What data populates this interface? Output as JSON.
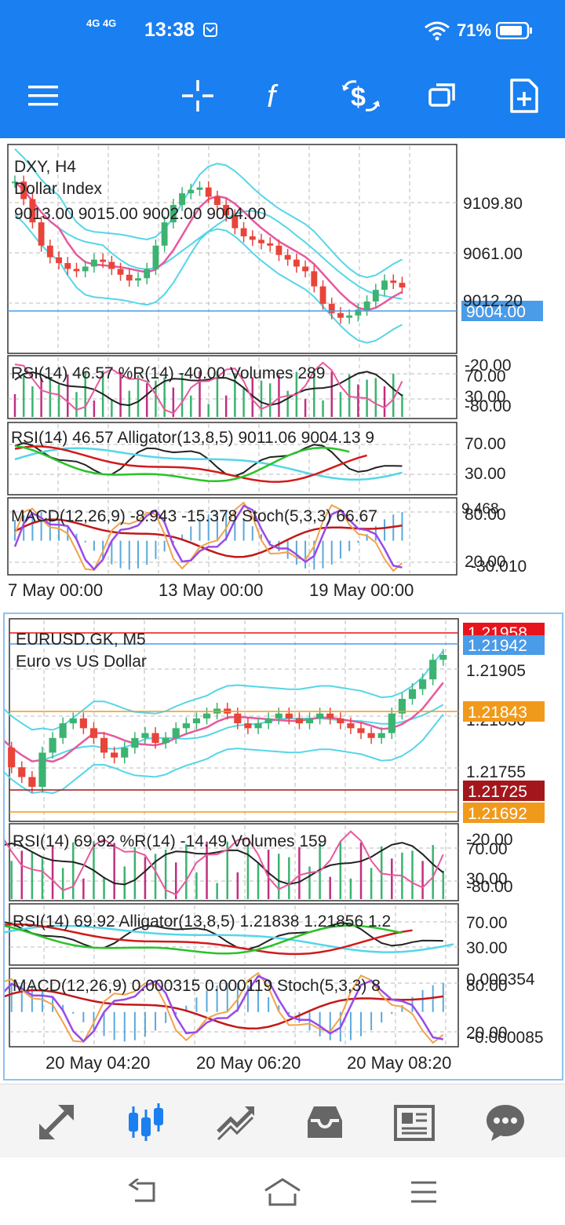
{
  "status_bar": {
    "network": "4G 4G",
    "time": "13:38",
    "battery": "71%"
  },
  "toolbar": {
    "icons": [
      "menu-icon",
      "crosshair-icon",
      "function-icon",
      "currency-exchange-icon",
      "windows-icon",
      "add-page-icon"
    ]
  },
  "chart_data": [
    {
      "type": "candlestick",
      "symbol": "DXY, H4",
      "description": "Dollar Index",
      "ohlc_readout": "9013.00 9015.00 9002.00 9004.00",
      "current_price": "9004.00",
      "price_ticks": [
        "9109.80",
        "9061.00",
        "9012.20"
      ],
      "x_ticks": [
        "7 May 00:00",
        "13 May 00:00",
        "19 May 00:00"
      ],
      "close_series": [
        9095,
        9080,
        9060,
        9040,
        9030,
        9025,
        9020,
        9018,
        9022,
        9028,
        9026,
        9020,
        9015,
        9010,
        9012,
        9020,
        9040,
        9060,
        9075,
        9085,
        9088,
        9090,
        9082,
        9075,
        9066,
        9055,
        9048,
        9045,
        9042,
        9040,
        9032,
        9028,
        9022,
        9018,
        9005,
        8990,
        8982,
        8978,
        8980,
        8985,
        8992,
        9002,
        9010,
        9008,
        9004
      ],
      "indicators": {
        "rsi_r_volumes": {
          "label": "RSI(14) 46.57 %R(14) -40.00 Volumes 289",
          "ticks": [
            "-20.00",
            "70.00",
            "30.00",
            "-80.00"
          ]
        },
        "rsi_alligator": {
          "label": "RSI(14) 46.57 Alligator(13,8,5) 9011.06 9004.13 9",
          "ticks": [
            "70.00",
            "30.00"
          ]
        },
        "macd_stoch": {
          "label": "MACD(12,26,9) -8.943 -15.378 Stoch(5,3,3) 66.67",
          "ticks": [
            "9.468",
            "80.00",
            "20.00",
            "-30.010"
          ]
        }
      }
    },
    {
      "type": "candlestick",
      "symbol": "EURUSD.GK, M5",
      "description": "Euro vs US Dollar",
      "price_ticks": [
        "1.21905",
        "1.21830",
        "1.21755"
      ],
      "price_labels": [
        {
          "text": "1.21958",
          "color": "#e8141c"
        },
        {
          "text": "1.21942",
          "color": "#4a9be8"
        },
        {
          "text": "1.21843",
          "color": "#f09a1c"
        },
        {
          "text": "1.21725",
          "color": "#a3171c"
        },
        {
          "text": "1.21692",
          "color": "#f09a1c"
        }
      ],
      "x_ticks": [
        "20 May 04:20",
        "20 May 06:20",
        "20 May 08:20"
      ],
      "close_series": [
        1.218,
        1.2176,
        1.2172,
        1.217,
        1.2168,
        1.2175,
        1.2178,
        1.2181,
        1.2182,
        1.218,
        1.2178,
        1.2175,
        1.2174,
        1.2176,
        1.2178,
        1.2179,
        1.2177,
        1.2178,
        1.218,
        1.2181,
        1.2182,
        1.2183,
        1.2184,
        1.2183,
        1.2181,
        1.218,
        1.2181,
        1.2182,
        1.2183,
        1.2182,
        1.2181,
        1.2182,
        1.2183,
        1.2182,
        1.2181,
        1.218,
        1.2179,
        1.2178,
        1.2179,
        1.2183,
        1.2186,
        1.2188,
        1.219,
        1.2194,
        1.2195
      ],
      "indicators": {
        "rsi_r_volumes": {
          "label": "RSI(14) 69.92 %R(14) -14.49 Volumes 159",
          "ticks": [
            "-20.00",
            "70.00",
            "30.00",
            "-80.00"
          ]
        },
        "rsi_alligator": {
          "label": "RSI(14) 69.92 Alligator(13,8,5) 1.21838 1.21856 1.2",
          "ticks": [
            "70.00",
            "30.00"
          ]
        },
        "macd_stoch": {
          "label": "MACD(12,26,9) 0.000315 0.000119 Stoch(5,3,3) 8",
          "ticks": [
            "0.000354",
            "80.00",
            "20.00",
            "-0.000085"
          ]
        }
      }
    }
  ],
  "bottom_nav": {
    "icons": [
      "quotes-icon",
      "chart-icon",
      "trade-icon",
      "history-icon",
      "news-icon",
      "chat-icon"
    ],
    "active": "chart-icon"
  },
  "system_nav": {
    "icons": [
      "back-icon",
      "home-icon",
      "recents-icon"
    ]
  },
  "colors": {
    "accent": "#1a7ff0",
    "bull": "#3cb371",
    "bear": "#e8443a",
    "band": "#55d6e8",
    "ma": "#e8589c"
  }
}
